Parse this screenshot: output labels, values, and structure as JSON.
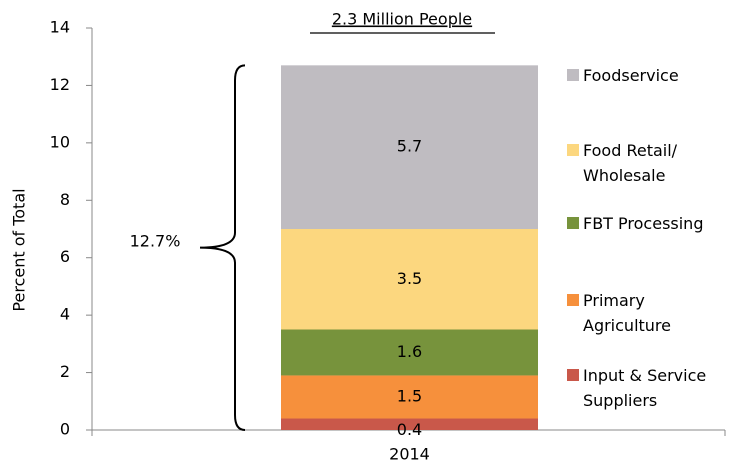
{
  "chart_data": {
    "type": "stacked_bar",
    "title": "2.3 Million People",
    "ylabel": "Percent of Total",
    "categories": [
      "2014"
    ],
    "series": [
      {
        "name": "Input & Service\nSuppliers",
        "color": "#c9584a",
        "values": [
          0.4
        ]
      },
      {
        "name": "Primary\nAgriculture",
        "color": "#f6903c",
        "values": [
          1.5
        ]
      },
      {
        "name": "FBT Processing",
        "color": "#77933c",
        "values": [
          1.6
        ]
      },
      {
        "name": "Food Retail/\nWholesale",
        "color": "#fcd77f",
        "values": [
          3.5
        ]
      },
      {
        "name": "Foodservice",
        "color": "#bfbcc1",
        "values": [
          5.7
        ]
      }
    ],
    "annotation": "12.7%",
    "ylim": [
      0,
      14
    ],
    "yticks": [
      0,
      2,
      4,
      6,
      8,
      10,
      12,
      14
    ]
  }
}
